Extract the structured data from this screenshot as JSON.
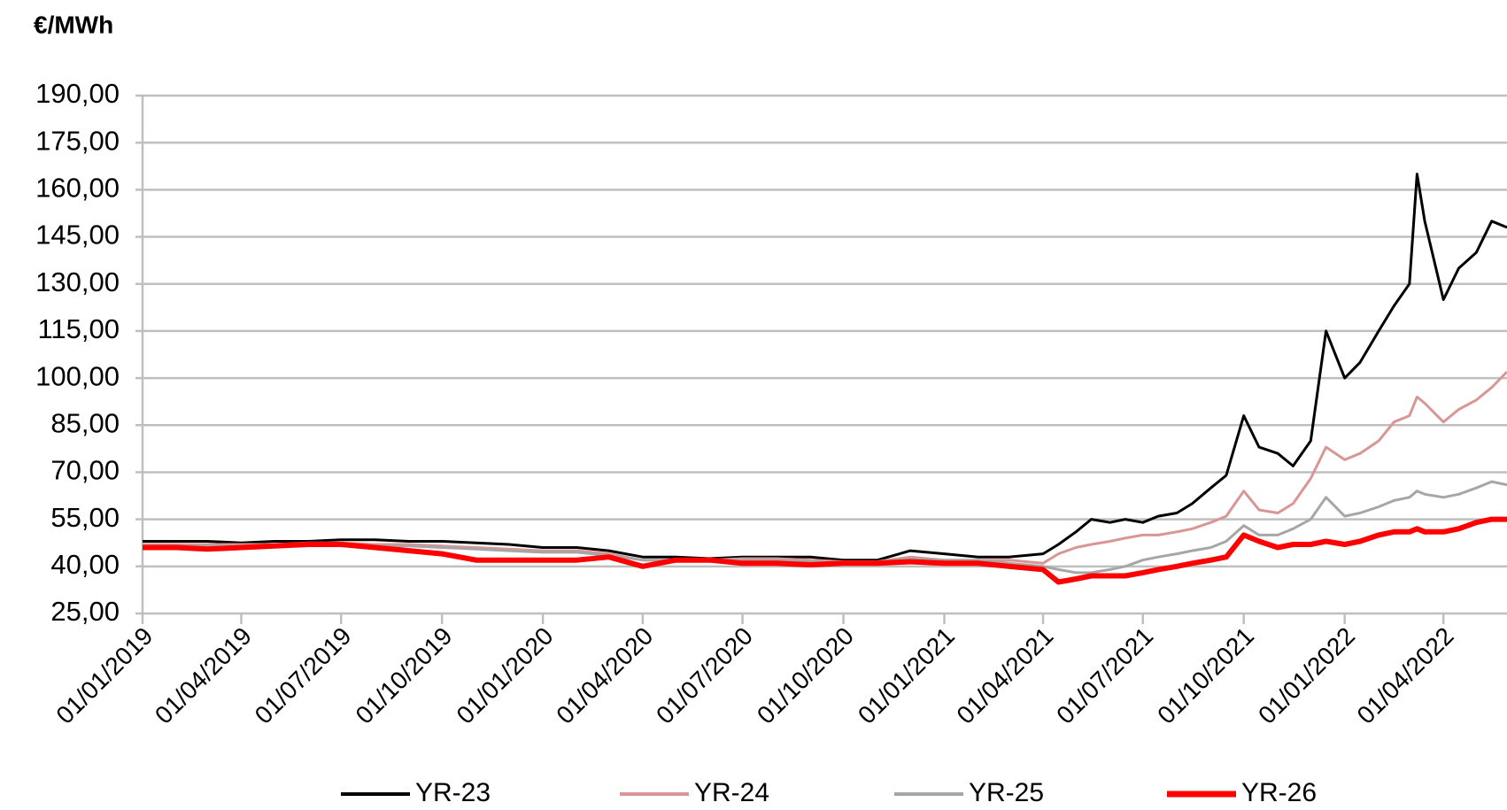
{
  "chart_data": {
    "type": "line",
    "title": "€/MWh",
    "x": [
      "2019-01-01",
      "2019-02-01",
      "2019-03-01",
      "2019-04-01",
      "2019-05-01",
      "2019-06-01",
      "2019-07-01",
      "2019-08-01",
      "2019-09-01",
      "2019-10-01",
      "2019-11-01",
      "2019-12-01",
      "2020-01-01",
      "2020-02-01",
      "2020-03-01",
      "2020-04-01",
      "2020-05-01",
      "2020-06-01",
      "2020-07-01",
      "2020-08-01",
      "2020-09-01",
      "2020-10-01",
      "2020-11-01",
      "2020-12-01",
      "2021-01-01",
      "2021-02-01",
      "2021-03-01",
      "2021-04-01",
      "2021-04-15",
      "2021-05-01",
      "2021-05-15",
      "2021-06-01",
      "2021-06-15",
      "2021-07-01",
      "2021-07-15",
      "2021-08-01",
      "2021-08-15",
      "2021-09-01",
      "2021-09-15",
      "2021-10-01",
      "2021-10-15",
      "2021-11-01",
      "2021-11-15",
      "2021-12-01",
      "2021-12-15",
      "2022-01-01",
      "2022-01-15",
      "2022-02-01",
      "2022-02-15",
      "2022-03-01",
      "2022-03-08",
      "2022-03-15",
      "2022-04-01",
      "2022-04-15",
      "2022-05-01",
      "2022-05-15",
      "2022-05-29"
    ],
    "series": [
      {
        "name": "YR-23",
        "color": "#000000",
        "width": 3,
        "values": [
          48,
          48,
          48,
          47.5,
          48,
          48,
          48.5,
          48.5,
          48,
          48,
          47.5,
          47,
          46,
          46,
          45,
          43,
          43,
          42.5,
          43,
          43,
          43,
          42,
          42,
          45,
          44,
          43,
          43,
          44,
          47,
          51,
          55,
          54,
          55,
          54,
          56,
          57,
          60,
          65,
          69,
          88,
          78,
          76,
          72,
          80,
          115,
          100,
          105,
          115,
          123,
          130,
          165,
          150,
          125,
          135,
          140,
          150,
          148
        ]
      },
      {
        "name": "YR-24",
        "color": "#d99694",
        "width": 3,
        "values": [
          47,
          47,
          47,
          47,
          47,
          47.5,
          47.5,
          47,
          47,
          46.5,
          46,
          45.5,
          45,
          45,
          44,
          42,
          42,
          42,
          42.5,
          42.5,
          42,
          41.5,
          41.5,
          43,
          42,
          42,
          42,
          41,
          44,
          46,
          47,
          48,
          49,
          50,
          50,
          51,
          52,
          54,
          56,
          64,
          58,
          57,
          60,
          68,
          78,
          74,
          76,
          80,
          86,
          88,
          94,
          92,
          86,
          90,
          93,
          97,
          102
        ]
      },
      {
        "name": "YR-25",
        "color": "#a6a6a6",
        "width": 3,
        "values": [
          46.5,
          46.5,
          46.5,
          46.5,
          46.5,
          47,
          47,
          46.5,
          46.5,
          46,
          45.5,
          45,
          44.5,
          44.5,
          43.5,
          42,
          42,
          42,
          42,
          42,
          41.5,
          41,
          41.5,
          42.5,
          42,
          42,
          41,
          40,
          39,
          38,
          38,
          39,
          40,
          42,
          43,
          44,
          45,
          46,
          48,
          53,
          50,
          50,
          52,
          55,
          62,
          56,
          57,
          59,
          61,
          62,
          64,
          63,
          62,
          63,
          65,
          67,
          66
        ]
      },
      {
        "name": "YR-26",
        "color": "#ff0000",
        "width": 6,
        "values": [
          46,
          46,
          45.5,
          46,
          46.5,
          47,
          47,
          46,
          45,
          44,
          42,
          42,
          42,
          42,
          43,
          40,
          42,
          42,
          41,
          41,
          40.5,
          41,
          41,
          41.5,
          41,
          41,
          40,
          39,
          35,
          36,
          37,
          37,
          37,
          38,
          39,
          40,
          41,
          42,
          43,
          50,
          48,
          46,
          47,
          47,
          48,
          47,
          48,
          50,
          51,
          51,
          52,
          51,
          51,
          52,
          54,
          55,
          55
        ]
      }
    ],
    "xlim": [
      "2019-01-01",
      "2022-05-29"
    ],
    "xticks": [
      {
        "value": "2019-01-01",
        "label": "01/01/2019"
      },
      {
        "value": "2019-04-01",
        "label": "01/04/2019"
      },
      {
        "value": "2019-07-01",
        "label": "01/07/2019"
      },
      {
        "value": "2019-10-01",
        "label": "01/10/2019"
      },
      {
        "value": "2020-01-01",
        "label": "01/01/2020"
      },
      {
        "value": "2020-04-01",
        "label": "01/04/2020"
      },
      {
        "value": "2020-07-01",
        "label": "01/07/2020"
      },
      {
        "value": "2020-10-01",
        "label": "01/10/2020"
      },
      {
        "value": "2021-01-01",
        "label": "01/01/2021"
      },
      {
        "value": "2021-04-01",
        "label": "01/04/2021"
      },
      {
        "value": "2021-07-01",
        "label": "01/07/2021"
      },
      {
        "value": "2021-10-01",
        "label": "01/10/2021"
      },
      {
        "value": "2022-01-01",
        "label": "01/01/2022"
      },
      {
        "value": "2022-04-01",
        "label": "01/04/2022"
      }
    ],
    "ylim": [
      25,
      190
    ],
    "yticks": [
      {
        "value": 25,
        "label": "25,00"
      },
      {
        "value": 40,
        "label": "40,00"
      },
      {
        "value": 55,
        "label": "55,00"
      },
      {
        "value": 70,
        "label": "70,00"
      },
      {
        "value": 85,
        "label": "85,00"
      },
      {
        "value": 100,
        "label": "100,00"
      },
      {
        "value": 115,
        "label": "115,00"
      },
      {
        "value": 130,
        "label": "130,00"
      },
      {
        "value": 145,
        "label": "145,00"
      },
      {
        "value": 160,
        "label": "160,00"
      },
      {
        "value": 175,
        "label": "175,00"
      },
      {
        "value": 190,
        "label": "190,00"
      }
    ],
    "grid": true,
    "legend": "bottom"
  }
}
